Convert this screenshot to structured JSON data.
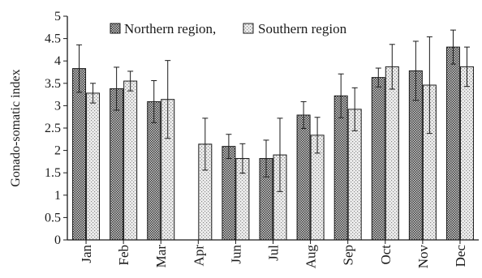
{
  "chart_data": {
    "type": "bar",
    "ylabel": "Gonado-somatic index",
    "xlabel": "",
    "ylim": [
      0,
      5
    ],
    "yticks": [
      "0",
      "0.5",
      "1",
      "1.5",
      "2",
      "2.5",
      "3",
      "3.5",
      "4",
      "4.5",
      "5"
    ],
    "grid": false,
    "legend_position": "top",
    "categories": [
      "Jan",
      "Feb",
      "Mar",
      "Apr",
      "Jun",
      "Jul",
      "Aug",
      "Sep",
      "Oct",
      "Nov",
      "Dec"
    ],
    "series": [
      {
        "name": "Northern region,",
        "pattern": "dense-crosshatch",
        "values": [
          3.83,
          3.38,
          3.09,
          null,
          2.09,
          1.82,
          2.79,
          3.22,
          3.63,
          3.78,
          4.31
        ],
        "errors": [
          0.53,
          0.48,
          0.47,
          null,
          0.27,
          0.41,
          0.3,
          0.49,
          0.21,
          0.66,
          0.38
        ]
      },
      {
        "name": "Southern region",
        "pattern": "light-dots",
        "values": [
          3.28,
          3.55,
          3.14,
          2.14,
          1.82,
          1.9,
          2.34,
          2.92,
          3.87,
          3.46,
          3.87
        ],
        "errors": [
          0.22,
          0.22,
          0.87,
          0.58,
          0.33,
          0.82,
          0.4,
          0.48,
          0.5,
          1.08,
          0.44
        ]
      }
    ]
  }
}
